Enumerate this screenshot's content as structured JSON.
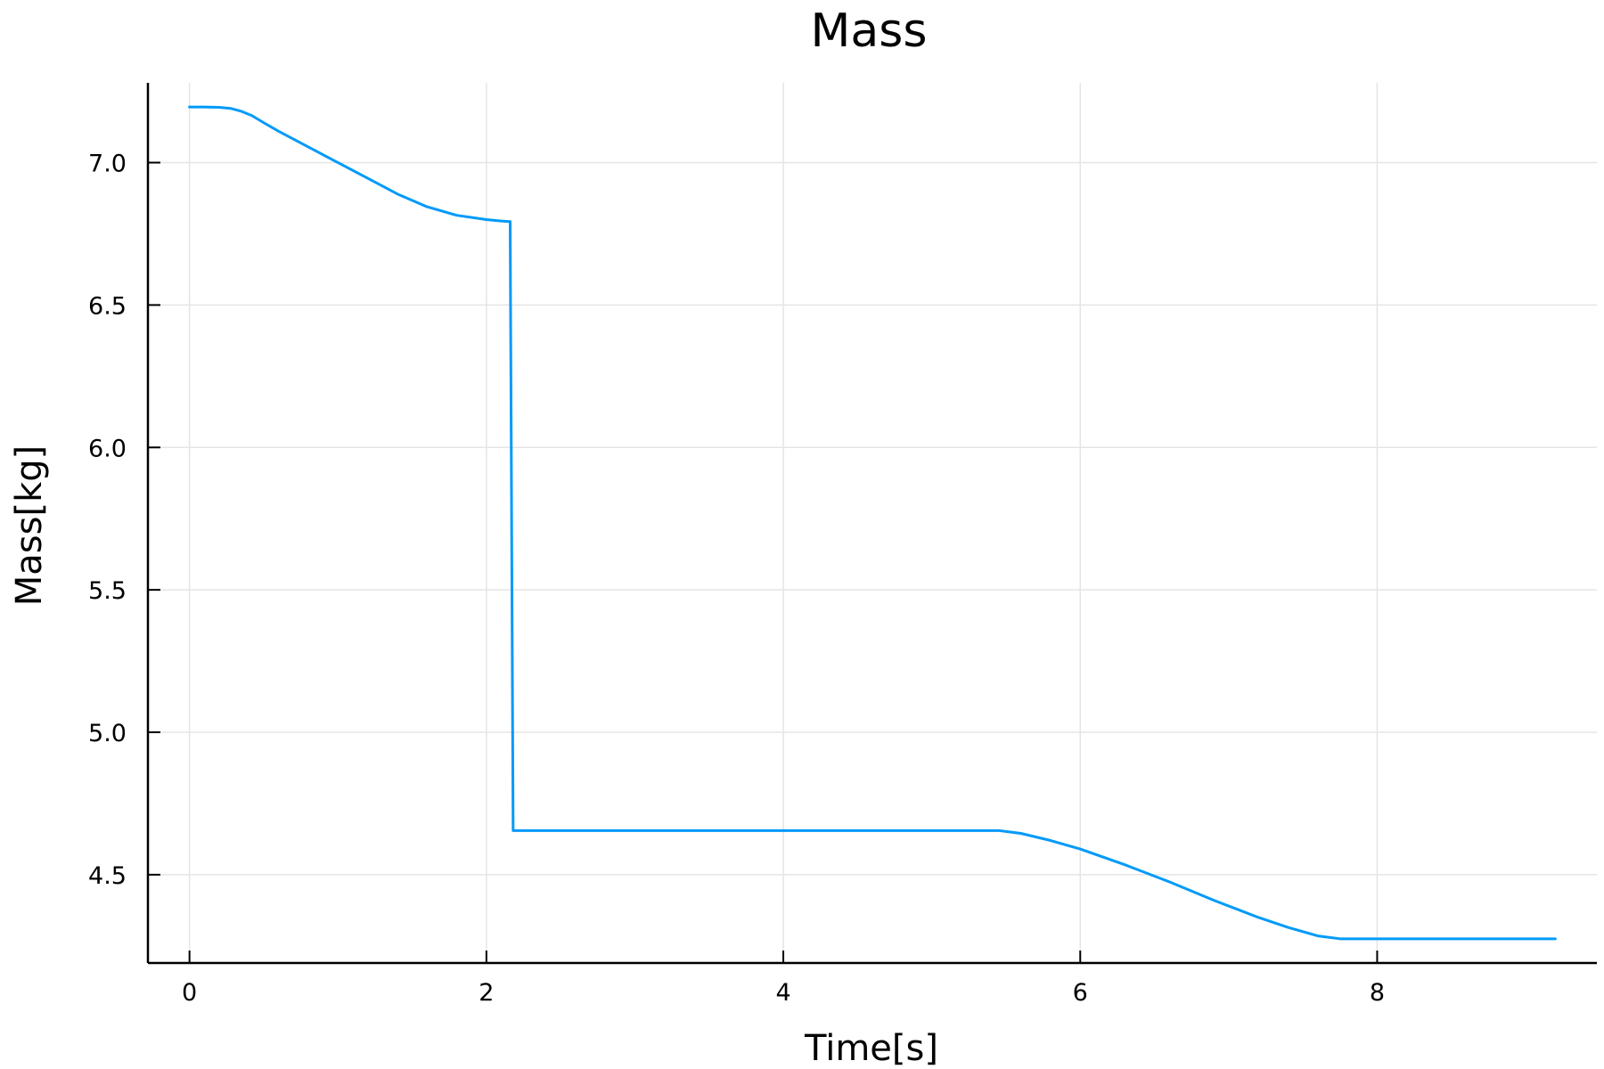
{
  "chart_data": {
    "type": "line",
    "title": "Mass",
    "xlabel": "Time[s]",
    "ylabel": "Mass[kg]",
    "xlim": [
      -0.28,
      9.48
    ],
    "ylim": [
      4.19,
      7.28
    ],
    "xticks": [
      0,
      2,
      4,
      6,
      8
    ],
    "xtick_labels": [
      "0",
      "2",
      "4",
      "6",
      "8"
    ],
    "yticks": [
      4.5,
      5.0,
      5.5,
      6.0,
      6.5,
      7.0
    ],
    "ytick_labels": [
      "4.5",
      "5.0",
      "5.5",
      "6.0",
      "6.5",
      "7.0"
    ],
    "grid": true,
    "legend": "none",
    "series": [
      {
        "color": "#009af9",
        "x": [
          0,
          0.1,
          0.2,
          0.28,
          0.35,
          0.42,
          0.5,
          0.6,
          0.8,
          1.0,
          1.2,
          1.4,
          1.6,
          1.8,
          2.0,
          2.1,
          2.16,
          2.18,
          2.5,
          3.0,
          3.5,
          4.0,
          4.5,
          5.0,
          5.45,
          5.6,
          5.8,
          6.0,
          6.3,
          6.6,
          6.9,
          7.2,
          7.4,
          7.6,
          7.75,
          8.0,
          8.5,
          9.0,
          9.2
        ],
        "y": [
          7.195,
          7.195,
          7.194,
          7.19,
          7.18,
          7.165,
          7.14,
          7.11,
          7.055,
          7.0,
          6.945,
          6.89,
          6.845,
          6.815,
          6.8,
          6.795,
          6.793,
          4.655,
          4.655,
          4.655,
          4.655,
          4.655,
          4.655,
          4.655,
          4.655,
          4.645,
          4.62,
          4.59,
          4.535,
          4.475,
          4.41,
          4.35,
          4.315,
          4.285,
          4.275,
          4.275,
          4.275,
          4.275,
          4.275
        ]
      }
    ]
  }
}
